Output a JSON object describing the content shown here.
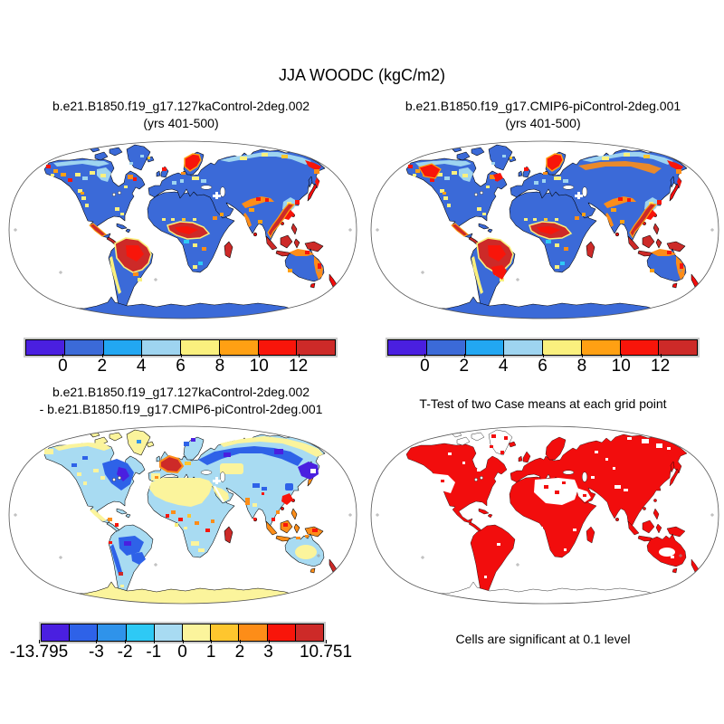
{
  "title": "JJA WOODC (kgC/m2)",
  "panels": {
    "top_left": {
      "title1": "b.e21.B1850.f19_g17.127kaControl-2deg.002",
      "title2": "(yrs 401-500)"
    },
    "top_right": {
      "title1": "b.e21.B1850.f19_g17.CMIP6-piControl-2deg.001",
      "title2": "(yrs 401-500)"
    },
    "bottom_left": {
      "title1": "b.e21.B1850.f19_g17.127kaControl-2deg.002",
      "title2": "- b.e21.B1850.f19_g17.CMIP6-piControl-2deg.001"
    },
    "bottom_right": {
      "title": "T-Test of two Case means at each grid point",
      "caption": "Cells are significant at 0.1 level"
    }
  },
  "colorbars": {
    "top": {
      "colors": [
        "#4a1fe0",
        "#3b6ad8",
        "#22a7f2",
        "#9ed4f0",
        "#faf07e",
        "#ffa013",
        "#f8150a",
        "#cd2a28"
      ],
      "labels": [
        "0",
        "2",
        "4",
        "6",
        "8",
        "10",
        "12"
      ],
      "positions": [
        1,
        2,
        3,
        4,
        5,
        6,
        7
      ]
    },
    "diff": {
      "colors": [
        "#4a1fe0",
        "#2e62e8",
        "#2f93ea",
        "#2ec9f5",
        "#a8dbf2",
        "#fbf49c",
        "#fec62e",
        "#fd8d18",
        "#f8150a",
        "#cd2a28"
      ],
      "labels": [
        "-13.795",
        "-3",
        "-2",
        "-1",
        "0",
        "1",
        "2",
        "3",
        "10.751"
      ],
      "positions": [
        0,
        2,
        3,
        4,
        5,
        6,
        7,
        8,
        10
      ]
    }
  },
  "colors": {
    "land_blue": "#3b6ad8",
    "light_blue": "#a8dbf2",
    "cyan": "#2ec9f5",
    "pale_yellow": "#fbf49c",
    "yellow": "#faf07e",
    "amber": "#fec62e",
    "orange": "#fd8d18",
    "orange2": "#ffa013",
    "bright_red": "#f20d0d",
    "dark_red": "#cd2a28",
    "deep_blue": "#2e62e8",
    "violet": "#4a1fe0"
  },
  "chart_data": [
    {
      "type": "map",
      "panel": "top_left",
      "title": "b.e21.B1850.f19_g17.127kaControl-2deg.002 (yrs 401-500)",
      "variable": "JJA WOODC (kgC/m2)",
      "projection": "robinson",
      "levels": [
        0,
        2,
        4,
        6,
        8,
        10,
        12
      ],
      "palette": [
        "#4a1fe0",
        "#3b6ad8",
        "#22a7f2",
        "#9ed4f0",
        "#faf07e",
        "#ffa013",
        "#f8150a",
        "#cd2a28"
      ],
      "summary": "Most land 0-2 kgC/m2 (blue); >12 (dark red) over Amazon, central Africa, SE Asia and Indonesia; yellow/orange patches over western N America, Scandinavia, Tibet and E Asia coasts"
    },
    {
      "type": "map",
      "panel": "top_right",
      "title": "b.e21.B1850.f19_g17.CMIP6-piControl-2deg.001 (yrs 401-500)",
      "variable": "JJA WOODC (kgC/m2)",
      "projection": "robinson",
      "levels": [
        0,
        2,
        4,
        6,
        8,
        10,
        12
      ],
      "palette": [
        "#4a1fe0",
        "#3b6ad8",
        "#22a7f2",
        "#9ed4f0",
        "#faf07e",
        "#ffa013",
        "#f8150a",
        "#cd2a28"
      ],
      "summary": "Same pattern as top_left plus extra red over west Canada, south Siberia orange band and SE Brazil"
    },
    {
      "type": "map",
      "panel": "bottom_left",
      "title": "127kaControl minus CMIP6-piControl difference",
      "variable": "JJA WOODC difference (kgC/m2)",
      "projection": "robinson",
      "levels": [
        -13.795,
        -3,
        -2,
        -1,
        0,
        1,
        2,
        3,
        10.751
      ],
      "palette": [
        "#4a1fe0",
        "#2e62e8",
        "#2f93ea",
        "#2ec9f5",
        "#a8dbf2",
        "#fbf49c",
        "#fec62e",
        "#fd8d18",
        "#f8150a",
        "#cd2a28"
      ],
      "summary": "Land mostly -1 to 0 (light blue) and 0 to 1 (pale yellow); strong negative (dark blue) over eastern N America, boreal Eurasia, Amazon and S Brazil; strong positive (red) over W Europe, Madagascar, coastal SE Asia, New Zealand"
    },
    {
      "type": "map",
      "panel": "bottom_right",
      "title": "T-Test of two Case means at each grid point",
      "projection": "robinson",
      "summary": "Red cells = significant at 0.1 level over nearly all vegetated land; Sahara, Arabia, W US interior, central Australia and Antarctica not significant"
    }
  ]
}
